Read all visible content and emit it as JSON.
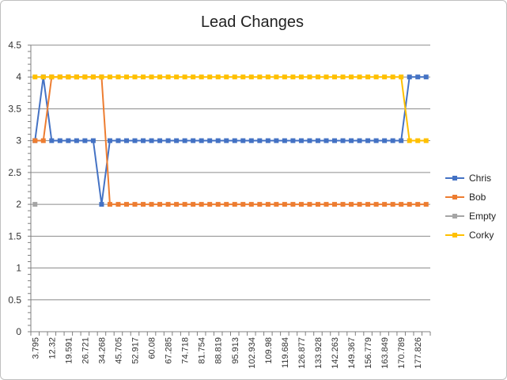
{
  "chart_data": {
    "type": "line",
    "title": "Lead Changes",
    "xlabel": "",
    "ylabel": "",
    "ylim": [
      0,
      4.5
    ],
    "y_ticks": [
      "0",
      "0.5",
      "1",
      "1.5",
      "2",
      "2.5",
      "3",
      "3.5",
      "4",
      "4.5"
    ],
    "grid": "horizontal",
    "legend_position": "right",
    "x_tick_labels": [
      "3.795",
      "12.32",
      "19.591",
      "26.721",
      "34.268",
      "45.705",
      "52.917",
      "60.08",
      "67.285",
      "74.718",
      "81.754",
      "88.819",
      "95.913",
      "102.934",
      "109.98",
      "119.684",
      "126.877",
      "133.928",
      "142.263",
      "149.367",
      "156.779",
      "163.849",
      "170.789",
      "177.826"
    ],
    "point_count": 48,
    "series": [
      {
        "name": "Chris",
        "color": "#4472C4",
        "values": [
          3,
          4,
          3,
          3,
          3,
          3,
          3,
          3,
          2,
          3,
          3,
          3,
          3,
          3,
          3,
          3,
          3,
          3,
          3,
          3,
          3,
          3,
          3,
          3,
          3,
          3,
          3,
          3,
          3,
          3,
          3,
          3,
          3,
          3,
          3,
          3,
          3,
          3,
          3,
          3,
          3,
          3,
          3,
          3,
          3,
          4,
          4,
          4
        ]
      },
      {
        "name": "Bob",
        "color": "#ED7D31",
        "values": [
          3,
          3,
          4,
          4,
          4,
          4,
          4,
          4,
          4,
          2,
          2,
          2,
          2,
          2,
          2,
          2,
          2,
          2,
          2,
          2,
          2,
          2,
          2,
          2,
          2,
          2,
          2,
          2,
          2,
          2,
          2,
          2,
          2,
          2,
          2,
          2,
          2,
          2,
          2,
          2,
          2,
          2,
          2,
          2,
          2,
          2,
          2,
          2
        ]
      },
      {
        "name": "Empty",
        "color": "#A5A5A5",
        "values": [
          2,
          null,
          null,
          null,
          null,
          null,
          null,
          null,
          null,
          null,
          null,
          null,
          null,
          null,
          null,
          null,
          null,
          null,
          null,
          null,
          null,
          null,
          null,
          null,
          null,
          null,
          null,
          null,
          null,
          null,
          null,
          null,
          null,
          null,
          null,
          null,
          null,
          null,
          null,
          null,
          null,
          null,
          null,
          null,
          null,
          null,
          null,
          null
        ]
      },
      {
        "name": "Corky",
        "color": "#FFC000",
        "values": [
          4,
          4,
          4,
          4,
          4,
          4,
          4,
          4,
          4,
          4,
          4,
          4,
          4,
          4,
          4,
          4,
          4,
          4,
          4,
          4,
          4,
          4,
          4,
          4,
          4,
          4,
          4,
          4,
          4,
          4,
          4,
          4,
          4,
          4,
          4,
          4,
          4,
          4,
          4,
          4,
          4,
          4,
          4,
          4,
          4,
          3,
          3,
          3
        ]
      }
    ]
  }
}
